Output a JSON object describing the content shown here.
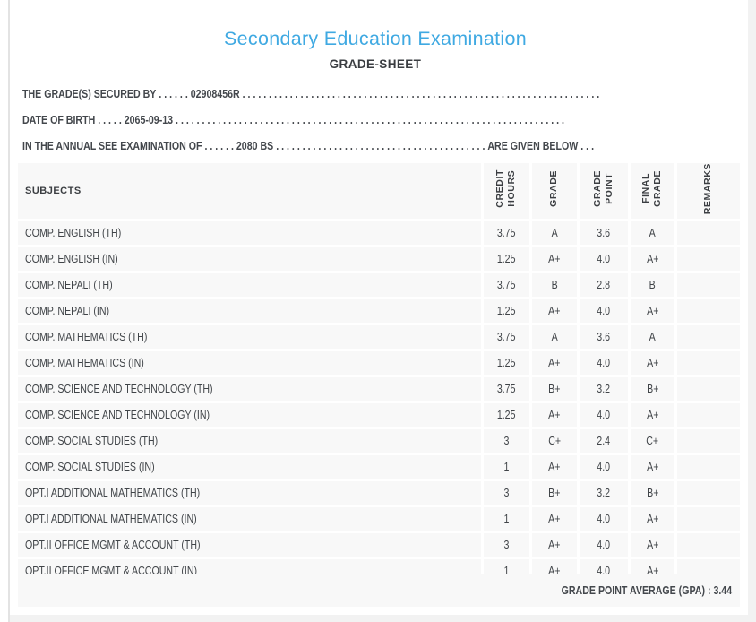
{
  "colors": {
    "accent_blue": "#3fa9e2",
    "table_cell_bg": "#f8f8f8",
    "text_dark": "#43474b"
  },
  "page": {
    "title": "Secondary Education Examination",
    "subtitle": "GRADE-SHEET"
  },
  "info_lines": [
    {
      "label": "THE GRADE(S) SECURED BY",
      "sep": " . . . . . . ",
      "value": "02908456R",
      "tail": " . . . . . . . . . . . . . . . . . . . . . . . . . . . . . . . . . . . . . . . . . . . . . . . . . . . . . . . . . . . . . . . . . . . .",
      "suffix": ""
    },
    {
      "label": "DATE OF BIRTH",
      "sep": " . . . . . ",
      "value": "2065-09-13",
      "tail": " . . . . . . . . . . . . . . . . . . . . . . . . . . . . . . . . . . . . . . . . . . . . . . . . . . . . . . . . . . . . . . . . . . . . . . . . . .",
      "suffix": ""
    },
    {
      "label": "IN THE ANNUAL SEE EXAMINATION OF",
      "sep": " . . . . . . ",
      "value": "2080 BS",
      "tail": " . . . . . . . . . . . . . . . . . . . . . . . . . . . . . . . . . . . . . . . . ",
      "suffix": "ARE GIVEN BELOW . . ."
    }
  ],
  "table": {
    "columns": [
      {
        "id": "subject",
        "label": "SUBJECTS"
      },
      {
        "id": "credit_hours",
        "label": "CREDIT\nHOURS"
      },
      {
        "id": "grade",
        "label": "GRADE"
      },
      {
        "id": "grade_point",
        "label": "GRADE\nPOINT"
      },
      {
        "id": "final_grade",
        "label": "FINAL\nGRADE"
      },
      {
        "id": "remarks",
        "label": "REMARKS"
      }
    ],
    "rows": [
      {
        "subject": "COMP. ENGLISH (TH)",
        "credit_hours": "3.75",
        "grade": "A",
        "grade_point": "3.6",
        "final_grade": "A",
        "remarks": ""
      },
      {
        "subject": "COMP. ENGLISH (IN)",
        "credit_hours": "1.25",
        "grade": "A+",
        "grade_point": "4.0",
        "final_grade": "A+",
        "remarks": ""
      },
      {
        "subject": "COMP. NEPALI (TH)",
        "credit_hours": "3.75",
        "grade": "B",
        "grade_point": "2.8",
        "final_grade": "B",
        "remarks": ""
      },
      {
        "subject": "COMP. NEPALI (IN)",
        "credit_hours": "1.25",
        "grade": "A+",
        "grade_point": "4.0",
        "final_grade": "A+",
        "remarks": ""
      },
      {
        "subject": "COMP. MATHEMATICS (TH)",
        "credit_hours": "3.75",
        "grade": "A",
        "grade_point": "3.6",
        "final_grade": "A",
        "remarks": ""
      },
      {
        "subject": "COMP. MATHEMATICS (IN)",
        "credit_hours": "1.25",
        "grade": "A+",
        "grade_point": "4.0",
        "final_grade": "A+",
        "remarks": ""
      },
      {
        "subject": "COMP. SCIENCE AND TECHNOLOGY (TH)",
        "credit_hours": "3.75",
        "grade": "B+",
        "grade_point": "3.2",
        "final_grade": "B+",
        "remarks": ""
      },
      {
        "subject": "COMP. SCIENCE AND TECHNOLOGY (IN)",
        "credit_hours": "1.25",
        "grade": "A+",
        "grade_point": "4.0",
        "final_grade": "A+",
        "remarks": ""
      },
      {
        "subject": "COMP. SOCIAL STUDIES (TH)",
        "credit_hours": "3",
        "grade": "C+",
        "grade_point": "2.4",
        "final_grade": "C+",
        "remarks": ""
      },
      {
        "subject": "COMP. SOCIAL STUDIES (IN)",
        "credit_hours": "1",
        "grade": "A+",
        "grade_point": "4.0",
        "final_grade": "A+",
        "remarks": ""
      },
      {
        "subject": "OPT.I ADDITIONAL MATHEMATICS (TH)",
        "credit_hours": "3",
        "grade": "B+",
        "grade_point": "3.2",
        "final_grade": "B+",
        "remarks": ""
      },
      {
        "subject": "OPT.I ADDITIONAL MATHEMATICS (IN)",
        "credit_hours": "1",
        "grade": "A+",
        "grade_point": "4.0",
        "final_grade": "A+",
        "remarks": ""
      },
      {
        "subject": "OPT.II OFFICE MGMT & ACCOUNT (TH)",
        "credit_hours": "3",
        "grade": "A+",
        "grade_point": "4.0",
        "final_grade": "A+",
        "remarks": ""
      },
      {
        "subject": "OPT.II OFFICE MGMT & ACCOUNT (IN)",
        "credit_hours": "1",
        "grade": "A+",
        "grade_point": "4.0",
        "final_grade": "A+",
        "remarks": ""
      }
    ]
  },
  "footer": {
    "gpa_label": "GRADE POINT AVERAGE (GPA) :",
    "gpa_value": "3.44"
  }
}
